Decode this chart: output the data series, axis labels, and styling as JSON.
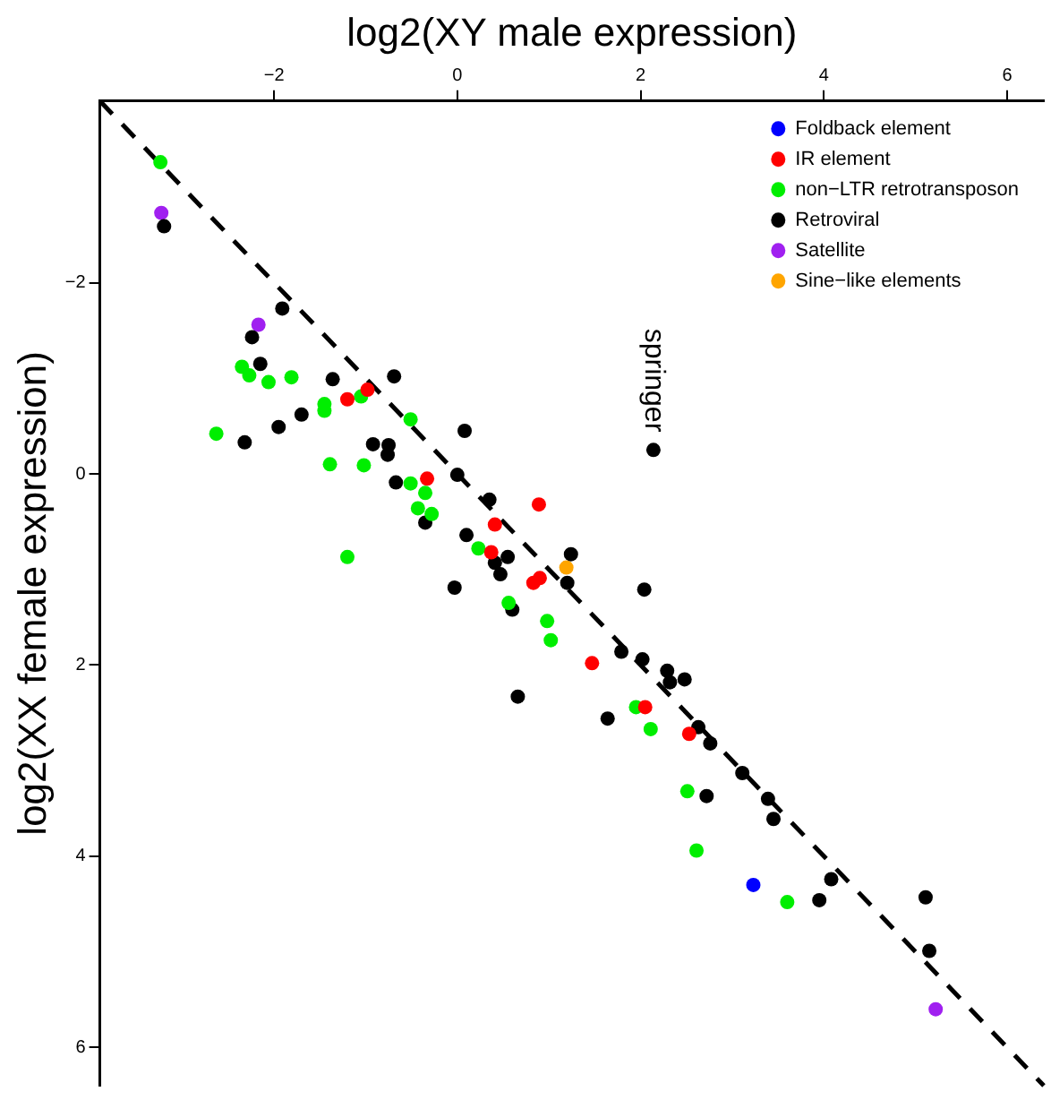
{
  "chart_data": {
    "type": "scatter",
    "xlabel": "log2(XY male expression)",
    "ylabel": "log2(XX female expression)",
    "xlim": [
      -3.9,
      6.4
    ],
    "ylim": [
      6.4,
      -3.9
    ],
    "xticks": [
      -2,
      0,
      2,
      4,
      6
    ],
    "yticks": [
      -2,
      0,
      2,
      4,
      6
    ],
    "grid": false,
    "legend": "top right",
    "marker": "circle",
    "annotations": [
      {
        "text": "springer",
        "x": 2.14,
        "y": -0.25
      }
    ],
    "series": [
      {
        "name": "Foldback element",
        "color": "#0000ff",
        "x": [
          3.23
        ],
        "values": [
          4.3
        ]
      },
      {
        "name": "IR element",
        "color": "#ff0000",
        "x": [
          -0.98,
          -1.2,
          -0.33,
          0.41,
          0.37,
          0.89,
          0.83,
          0.9,
          1.47,
          2.05,
          2.53
        ],
        "values": [
          -0.88,
          -0.78,
          0.05,
          0.53,
          0.82,
          0.32,
          1.14,
          1.09,
          1.98,
          2.44,
          2.72
        ]
      },
      {
        "name": "non−LTR retrotransposon",
        "color": "#00ee00",
        "x": [
          -3.24,
          -2.35,
          -2.27,
          -2.06,
          -1.81,
          -1.05,
          -1.45,
          -1.45,
          -0.51,
          -2.63,
          -1.39,
          -1.02,
          -0.51,
          -0.35,
          -0.43,
          -0.28,
          0.23,
          -1.2,
          0.56,
          0.98,
          1.02,
          1.95,
          2.11,
          2.51,
          2.61,
          3.6
        ],
        "values": [
          -3.26,
          -1.12,
          -1.03,
          -0.96,
          -1.01,
          -0.81,
          -0.73,
          -0.66,
          -0.57,
          -0.42,
          -0.1,
          -0.09,
          0.1,
          0.2,
          0.36,
          0.42,
          0.78,
          0.87,
          1.35,
          1.54,
          1.74,
          2.44,
          2.67,
          3.32,
          3.94,
          4.48
        ]
      },
      {
        "name": "Retroviral",
        "color": "#000000",
        "x": [
          -3.2,
          -1.91,
          -2.24,
          -2.15,
          -1.36,
          -0.69,
          -1.7,
          -1.95,
          -2.32,
          -0.92,
          -0.75,
          -0.76,
          0.08,
          0.0,
          -0.67,
          0.35,
          -0.35,
          0.1,
          0.41,
          0.55,
          0.47,
          -0.03,
          0.6,
          0.66,
          2.14,
          1.24,
          1.2,
          2.04,
          1.79,
          2.02,
          2.29,
          2.32,
          2.48,
          1.64,
          2.63,
          2.76,
          3.11,
          3.39,
          2.72,
          3.45,
          4.08,
          3.95,
          5.11,
          5.15
        ],
        "values": [
          -2.59,
          -1.73,
          -1.43,
          -1.15,
          -0.99,
          -1.02,
          -0.62,
          -0.49,
          -0.33,
          -0.31,
          -0.3,
          -0.2,
          -0.45,
          0.01,
          0.09,
          0.27,
          0.51,
          0.64,
          0.93,
          0.87,
          1.05,
          1.19,
          1.42,
          2.33,
          -0.25,
          0.84,
          1.14,
          1.21,
          1.86,
          1.94,
          2.06,
          2.18,
          2.15,
          2.56,
          2.65,
          2.82,
          3.13,
          3.4,
          3.37,
          3.61,
          4.24,
          4.46,
          4.43,
          4.99
        ]
      },
      {
        "name": "Satellite",
        "color": "#a020f0",
        "x": [
          -3.23,
          -2.17,
          5.22
        ],
        "values": [
          -2.73,
          -1.56,
          5.6
        ]
      },
      {
        "name": "Sine−like elements",
        "color": "#ffa500",
        "x": [
          1.19
        ],
        "values": [
          0.98
        ]
      },
      {
        "type": "line",
        "color": "#000000",
        "line_style": "dashed",
        "marker": "none",
        "x": [
          -3.9,
          6.4
        ],
        "values": [
          -3.9,
          6.4
        ]
      }
    ]
  }
}
